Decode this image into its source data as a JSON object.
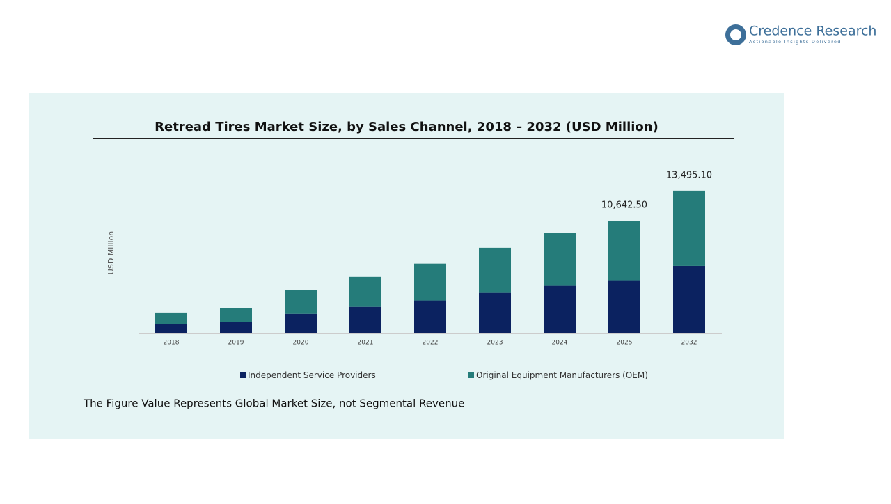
{
  "logo": {
    "name": "Credence Research",
    "tagline": "Actionable Insights Delivered"
  },
  "chart_data": {
    "type": "stacked-bar",
    "title": "Retread Tires Market Size, by Sales Channel, 2018 – 2032 (USD Million)",
    "y_label": "USD Million",
    "categories": [
      "2018",
      "2019",
      "2020",
      "2021",
      "2022",
      "2023",
      "2024",
      "2025",
      "2032"
    ],
    "series": [
      {
        "name": "Independent Service Providers",
        "color": "#0b2260",
        "values": [
          900,
          1080,
          1860,
          2520,
          3120,
          3840,
          4500,
          5029.0,
          6386.0
        ]
      },
      {
        "name": "Original Equipment Manufacturers (OEM)",
        "color": "#257c7a",
        "values": [
          1080,
          1320,
          2220,
          2820,
          3480,
          4260,
          4980,
          5613.5,
          7109.1
        ]
      }
    ],
    "totals": [
      null,
      null,
      null,
      null,
      null,
      null,
      null,
      10642.5,
      13495.1
    ],
    "total_labels": [
      null,
      null,
      null,
      null,
      null,
      null,
      null,
      "10,642.50",
      "13,495.10"
    ],
    "ylim": [
      0,
      15000
    ],
    "note": "The Figure Value Represents Global Market Size, not Segmental Revenue"
  }
}
